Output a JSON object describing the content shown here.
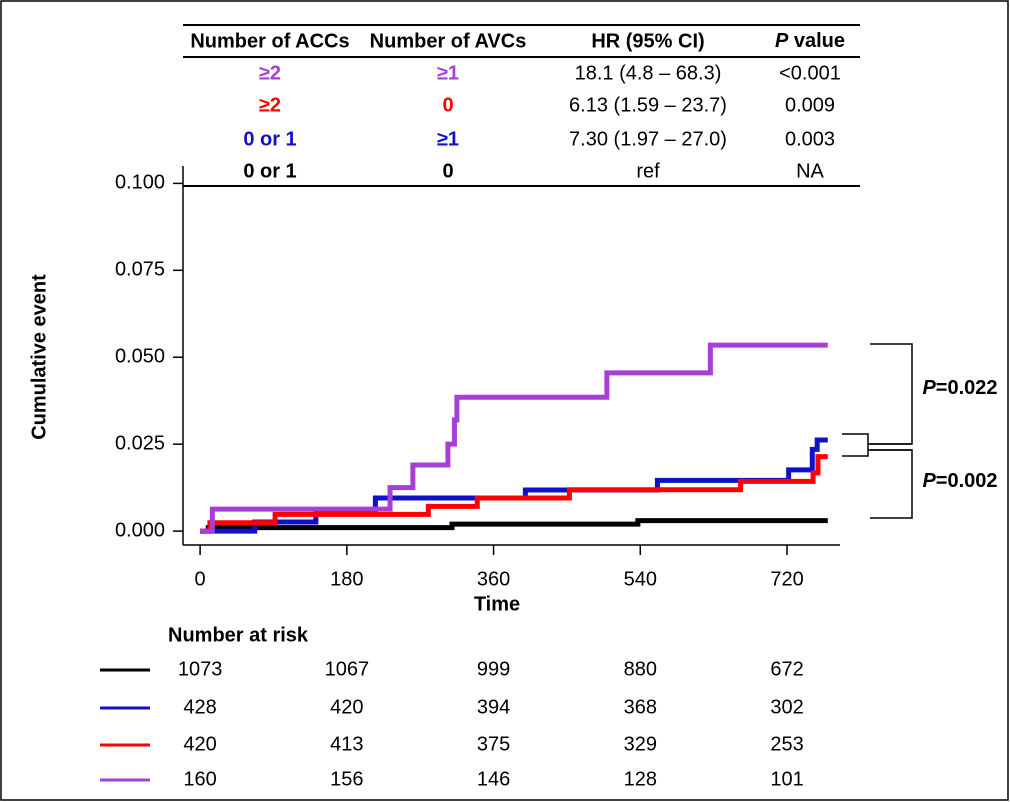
{
  "chart_data": {
    "type": "line",
    "drawstyle": "steps-post",
    "x_label": "Time",
    "y_label": "Cumulative event",
    "xlim": [
      -21,
      785
    ],
    "ylim": [
      -0.004,
      0.105
    ],
    "xticks": [
      0,
      180,
      360,
      540,
      720
    ],
    "yticks": [
      {
        "value": 0,
        "label": "0.000"
      },
      {
        "value": 0.025,
        "label": "0.025"
      },
      {
        "value": 0.05,
        "label": "0.050"
      },
      {
        "value": 0.075,
        "label": "0.075"
      },
      {
        "value": 0.1,
        "label": "0.100"
      }
    ],
    "series": [
      {
        "color": "#000000",
        "x": [
          0,
          10,
          309,
          537,
          770
        ],
        "values": [
          0,
          0.001,
          0.002,
          0.003,
          0.003
        ],
        "at_risk": [
          1073,
          1067,
          999,
          880,
          672
        ]
      },
      {
        "color": "#1010c8",
        "x": [
          0,
          67,
          142,
          215,
          399,
          561,
          722,
          751,
          757,
          770
        ],
        "values": [
          0,
          0.0026,
          0.0052,
          0.0095,
          0.0118,
          0.0146,
          0.0176,
          0.0235,
          0.0262,
          0.0262
        ],
        "at_risk": [
          428,
          420,
          394,
          368,
          302
        ]
      },
      {
        "color": "#ff0000",
        "x": [
          0,
          12,
          92,
          280,
          340,
          453,
          663,
          752,
          758,
          770
        ],
        "values": [
          0,
          0.0024,
          0.0048,
          0.0071,
          0.0095,
          0.0119,
          0.0143,
          0.0167,
          0.0214,
          0.0214
        ],
        "at_risk": [
          420,
          413,
          375,
          329,
          253
        ]
      },
      {
        "color": "#a63fd6",
        "x": [
          0,
          15,
          233,
          261,
          304,
          312,
          315,
          499,
          626,
          770
        ],
        "values": [
          0,
          0.0063,
          0.0125,
          0.019,
          0.025,
          0.032,
          0.0385,
          0.0455,
          0.0535,
          0.0535
        ],
        "at_risk": [
          160,
          156,
          146,
          128,
          101
        ]
      }
    ],
    "risk_title": "Number at risk",
    "annotations": [
      "P=0.022",
      "P=0.002"
    ],
    "hr_table": {
      "columns": [
        "Number of ACCs",
        "Number of AVCs",
        "HR (95% CI)",
        "P value"
      ],
      "rows": [
        [
          "≥2",
          "≥1",
          "18.1 (4.8 – 68.3)",
          "<0.001"
        ],
        [
          "≥2",
          "0",
          "6.13 (1.59 – 23.7)",
          "0.009"
        ],
        [
          "0 or 1",
          "≥1",
          "7.30 (1.97 – 27.0)",
          "0.003"
        ],
        [
          "0 or 1",
          "0",
          "ref",
          "NA"
        ]
      ]
    }
  }
}
